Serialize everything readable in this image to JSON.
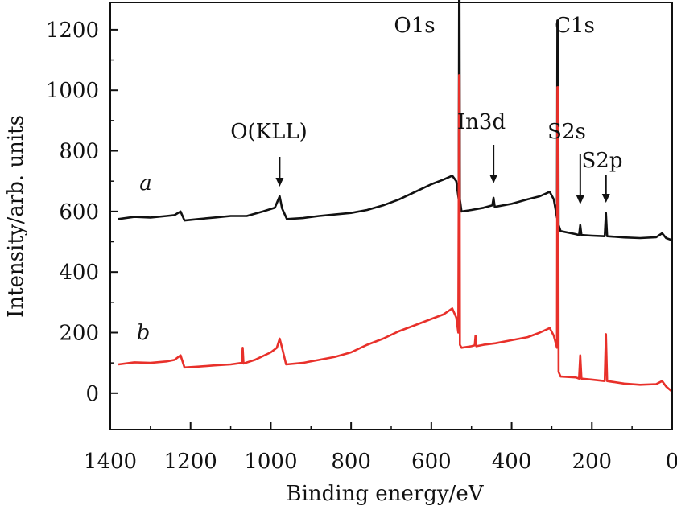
{
  "chart_data": {
    "type": "line",
    "title": "",
    "xlabel": "Binding energy/eV",
    "ylabel": "Intensity/arb. units",
    "xlim": [
      1400,
      0
    ],
    "ylim": [
      -120,
      1290
    ],
    "x_reversed": true,
    "x_ticks": [
      1400,
      1200,
      1000,
      800,
      600,
      400,
      200,
      0
    ],
    "y_ticks": [
      0,
      200,
      400,
      600,
      800,
      1000,
      1200
    ],
    "grid": false,
    "legend": "none",
    "series": [
      {
        "name": "a",
        "color": "#111111",
        "points": [
          [
            1380,
            575
          ],
          [
            1340,
            582
          ],
          [
            1300,
            580
          ],
          [
            1260,
            585
          ],
          [
            1240,
            588
          ],
          [
            1225,
            600
          ],
          [
            1215,
            570
          ],
          [
            1180,
            575
          ],
          [
            1140,
            580
          ],
          [
            1100,
            585
          ],
          [
            1060,
            585
          ],
          [
            1020,
            600
          ],
          [
            990,
            612
          ],
          [
            978,
            650
          ],
          [
            972,
            610
          ],
          [
            960,
            575
          ],
          [
            920,
            578
          ],
          [
            880,
            585
          ],
          [
            840,
            590
          ],
          [
            800,
            595
          ],
          [
            760,
            605
          ],
          [
            720,
            620
          ],
          [
            680,
            640
          ],
          [
            640,
            665
          ],
          [
            600,
            690
          ],
          [
            570,
            705
          ],
          [
            548,
            718
          ],
          [
            538,
            700
          ],
          [
            532,
            640
          ],
          [
            531,
            1300
          ],
          [
            530,
            1300
          ],
          [
            529,
            640
          ],
          [
            525,
            600
          ],
          [
            500,
            605
          ],
          [
            470,
            612
          ],
          [
            448,
            620
          ],
          [
            445,
            645
          ],
          [
            442,
            615
          ],
          [
            400,
            625
          ],
          [
            360,
            640
          ],
          [
            330,
            650
          ],
          [
            305,
            665
          ],
          [
            295,
            640
          ],
          [
            287,
            580
          ],
          [
            286,
            1230
          ],
          [
            284,
            1230
          ],
          [
            283,
            555
          ],
          [
            278,
            535
          ],
          [
            240,
            525
          ],
          [
            232,
            522
          ],
          [
            229,
            555
          ],
          [
            226,
            522
          ],
          [
            200,
            520
          ],
          [
            168,
            518
          ],
          [
            165,
            595
          ],
          [
            162,
            518
          ],
          [
            120,
            514
          ],
          [
            80,
            512
          ],
          [
            40,
            515
          ],
          [
            25,
            528
          ],
          [
            15,
            512
          ],
          [
            0,
            505
          ]
        ]
      },
      {
        "name": "b",
        "color": "#e8302a",
        "points": [
          [
            1380,
            95
          ],
          [
            1340,
            102
          ],
          [
            1300,
            100
          ],
          [
            1260,
            105
          ],
          [
            1240,
            110
          ],
          [
            1225,
            125
          ],
          [
            1215,
            85
          ],
          [
            1180,
            88
          ],
          [
            1140,
            92
          ],
          [
            1100,
            95
          ],
          [
            1072,
            100
          ],
          [
            1070,
            150
          ],
          [
            1068,
            98
          ],
          [
            1040,
            110
          ],
          [
            1000,
            135
          ],
          [
            985,
            150
          ],
          [
            978,
            180
          ],
          [
            972,
            150
          ],
          [
            962,
            95
          ],
          [
            920,
            100
          ],
          [
            880,
            110
          ],
          [
            840,
            120
          ],
          [
            800,
            135
          ],
          [
            760,
            160
          ],
          [
            720,
            180
          ],
          [
            680,
            205
          ],
          [
            640,
            225
          ],
          [
            600,
            245
          ],
          [
            570,
            260
          ],
          [
            548,
            280
          ],
          [
            538,
            250
          ],
          [
            533,
            200
          ],
          [
            531,
            1050
          ],
          [
            530,
            1050
          ],
          [
            529,
            160
          ],
          [
            525,
            150
          ],
          [
            500,
            155
          ],
          [
            492,
            158
          ],
          [
            490,
            190
          ],
          [
            488,
            155
          ],
          [
            470,
            160
          ],
          [
            440,
            165
          ],
          [
            400,
            175
          ],
          [
            360,
            185
          ],
          [
            330,
            200
          ],
          [
            305,
            215
          ],
          [
            295,
            190
          ],
          [
            287,
            150
          ],
          [
            286,
            1010
          ],
          [
            284,
            1010
          ],
          [
            283,
            70
          ],
          [
            278,
            55
          ],
          [
            240,
            52
          ],
          [
            232,
            48
          ],
          [
            229,
            125
          ],
          [
            226,
            48
          ],
          [
            200,
            45
          ],
          [
            168,
            40
          ],
          [
            165,
            195
          ],
          [
            162,
            40
          ],
          [
            120,
            32
          ],
          [
            80,
            28
          ],
          [
            40,
            30
          ],
          [
            25,
            40
          ],
          [
            15,
            22
          ],
          [
            0,
            5
          ]
        ]
      }
    ],
    "annotations": [
      {
        "text": "O1s",
        "arrow": false
      },
      {
        "text": "C1s",
        "arrow": false
      },
      {
        "text": "O(KLL)",
        "arrow": true,
        "arrow_x": 978
      },
      {
        "text": "In3d",
        "arrow": true,
        "arrow_x": 445
      },
      {
        "text": "S2s",
        "arrow": true,
        "arrow_x": 229
      },
      {
        "text": "S2p",
        "arrow": true,
        "arrow_x": 165
      }
    ],
    "series_labels": [
      "a",
      "b"
    ]
  }
}
